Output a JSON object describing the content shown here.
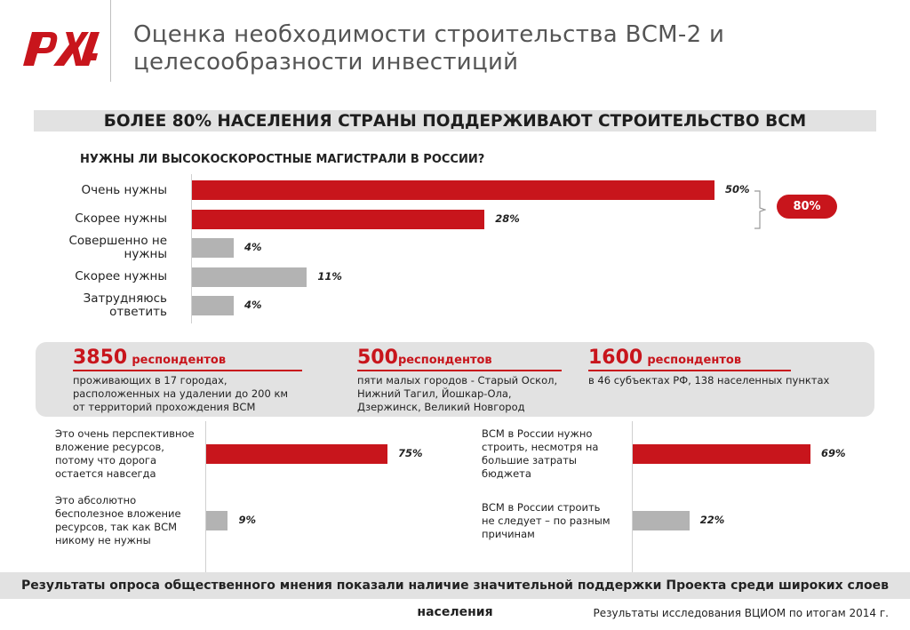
{
  "header": {
    "logo_text": "РЖД",
    "title_line1": "Оценка необходимости строительства ВСМ-2 и",
    "title_line2": "целесообразности инвестиций",
    "brand_color": "#c8151c"
  },
  "banner": "БОЛЕЕ 80% НАСЕЛЕНИЯ СТРАНЫ ПОДДЕРЖИВАЮТ СТРОИТЕЛЬСТВО ВСМ",
  "total_badge": "80%",
  "stats": [
    {
      "number": "3850",
      "label": "респондентов",
      "desc": [
        "проживающих в 17 городах,",
        "расположенных на удалении до 200 км",
        "от территорий прохождения ВСМ"
      ]
    },
    {
      "number": "500",
      "label": "респондентов",
      "desc": [
        "пяти малых городов - Старый Оскол,",
        "Нижний Тагил, Йошкар-Ола,",
        "Дзержинск, Великий Новгород"
      ]
    },
    {
      "number": "1600",
      "label": "респондентов",
      "desc": [
        "в 46 субъектах РФ, 138 населенных пунктах"
      ]
    }
  ],
  "footer": "Результаты опроса общественного мнения показали наличие значительной поддержки Проекта среди широких слоев населения",
  "source": "Результаты исследования ВЦИОМ по итогам 2014 г.",
  "chart_data": [
    {
      "type": "bar",
      "orientation": "horizontal",
      "title": "НУЖНЫ ЛИ ВЫСОКОСКОРОСТНЫЕ МАГИСТРАЛИ В РОССИИ?",
      "categories": [
        "Очень нужны",
        "Скорее нужны",
        "Совершенно не нужны",
        "Скорее нужны",
        "Затрудняюсь ответить"
      ],
      "labels_lines": [
        [
          "Очень нужны"
        ],
        [
          "Скорее нужны"
        ],
        [
          "Совершенно не",
          "нужны"
        ],
        [
          "Скорее нужны"
        ],
        [
          "Затрудняюсь",
          "ответить"
        ]
      ],
      "values": [
        50,
        28,
        4,
        11,
        4
      ],
      "value_labels": [
        "50%",
        "28%",
        "4%",
        "11%",
        "4%"
      ],
      "colors": [
        "#c8151c",
        "#c8151c",
        "#b3b3b3",
        "#b3b3b3",
        "#b3b3b3"
      ],
      "xlim": [
        0,
        50
      ],
      "grid": false
    },
    {
      "type": "bar",
      "orientation": "horizontal",
      "categories": [
        "Это очень перспективное вложение ресурсов, потому что дорога остается навсегда",
        "Это абсолютно бесполезное вложение ресурсов, так как ВСМ никому не нужны"
      ],
      "labels_lines": [
        [
          "Это очень перспективное",
          "вложение ресурсов,",
          "потому что дорога",
          "остается навсегда"
        ],
        [
          "Это абсолютно",
          "бесполезное вложение",
          "ресурсов, так как ВСМ",
          "никому не нужны"
        ]
      ],
      "values": [
        75,
        9
      ],
      "value_labels": [
        "75%",
        "9%"
      ],
      "colors": [
        "#c8151c",
        "#b3b3b3"
      ],
      "xlim": [
        0,
        75
      ],
      "grid": false
    },
    {
      "type": "bar",
      "orientation": "horizontal",
      "categories": [
        "ВСМ в России нужно строить, несмотря на большие затраты бюджета",
        "ВСМ в России строить не следует – по разным причинам"
      ],
      "labels_lines": [
        [
          "ВСМ в России нужно",
          "строить, несмотря на",
          "большие затраты",
          "бюджета"
        ],
        [
          "ВСМ в России строить",
          "не следует – по разным",
          "причинам"
        ]
      ],
      "values": [
        69,
        22
      ],
      "value_labels": [
        "69%",
        "22%"
      ],
      "colors": [
        "#c8151c",
        "#b3b3b3"
      ],
      "xlim": [
        0,
        69
      ],
      "grid": false
    }
  ]
}
